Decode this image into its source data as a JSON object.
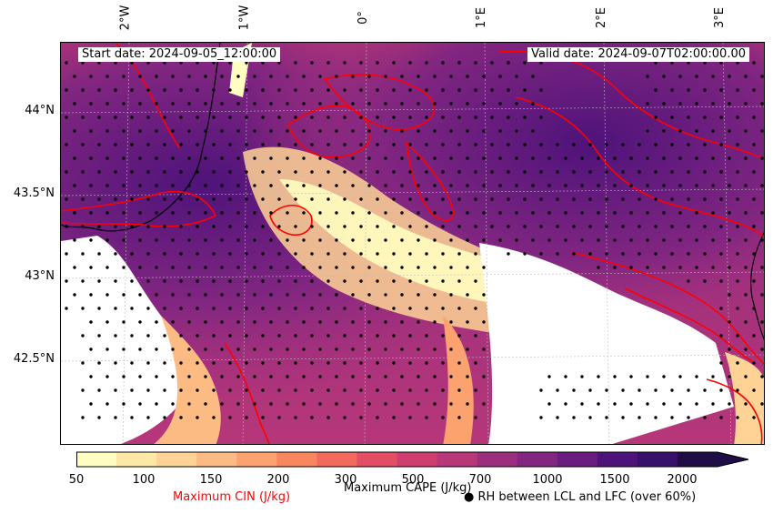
{
  "header": {
    "start_date": "Start date: 2024-09-05_12:00:00",
    "valid_date": "Valid date: 2024-09-07T02:00:00.00"
  },
  "axes": {
    "lon_ticks": [
      "2°W",
      "1°W",
      "0°",
      "1°E",
      "2°E",
      "3°E"
    ],
    "lat_ticks": [
      "44°N",
      "43.5°N",
      "43°N",
      "42.5°N"
    ]
  },
  "colorbar": {
    "ticks": [
      "50",
      "100",
      "150",
      "200",
      "300",
      "500",
      "700",
      "1000",
      "1500",
      "2000"
    ],
    "colors": [
      "#fffdbf",
      "#fee8a6",
      "#fed395",
      "#fdbb84",
      "#fca26f",
      "#f9875e",
      "#f3695c",
      "#e34e64",
      "#cf3e6e",
      "#b73779",
      "#9c2e7f",
      "#822681",
      "#6a1c81",
      "#4e137a",
      "#36106b",
      "#1f0d45"
    ],
    "cape_label": "Maximum CAPE (J/kg)",
    "cin_label": "Maximum CIN (J/kg)",
    "cin_color": "#ff0000",
    "rh_label": "● RH between LCL and LFC (over 60%)"
  }
}
